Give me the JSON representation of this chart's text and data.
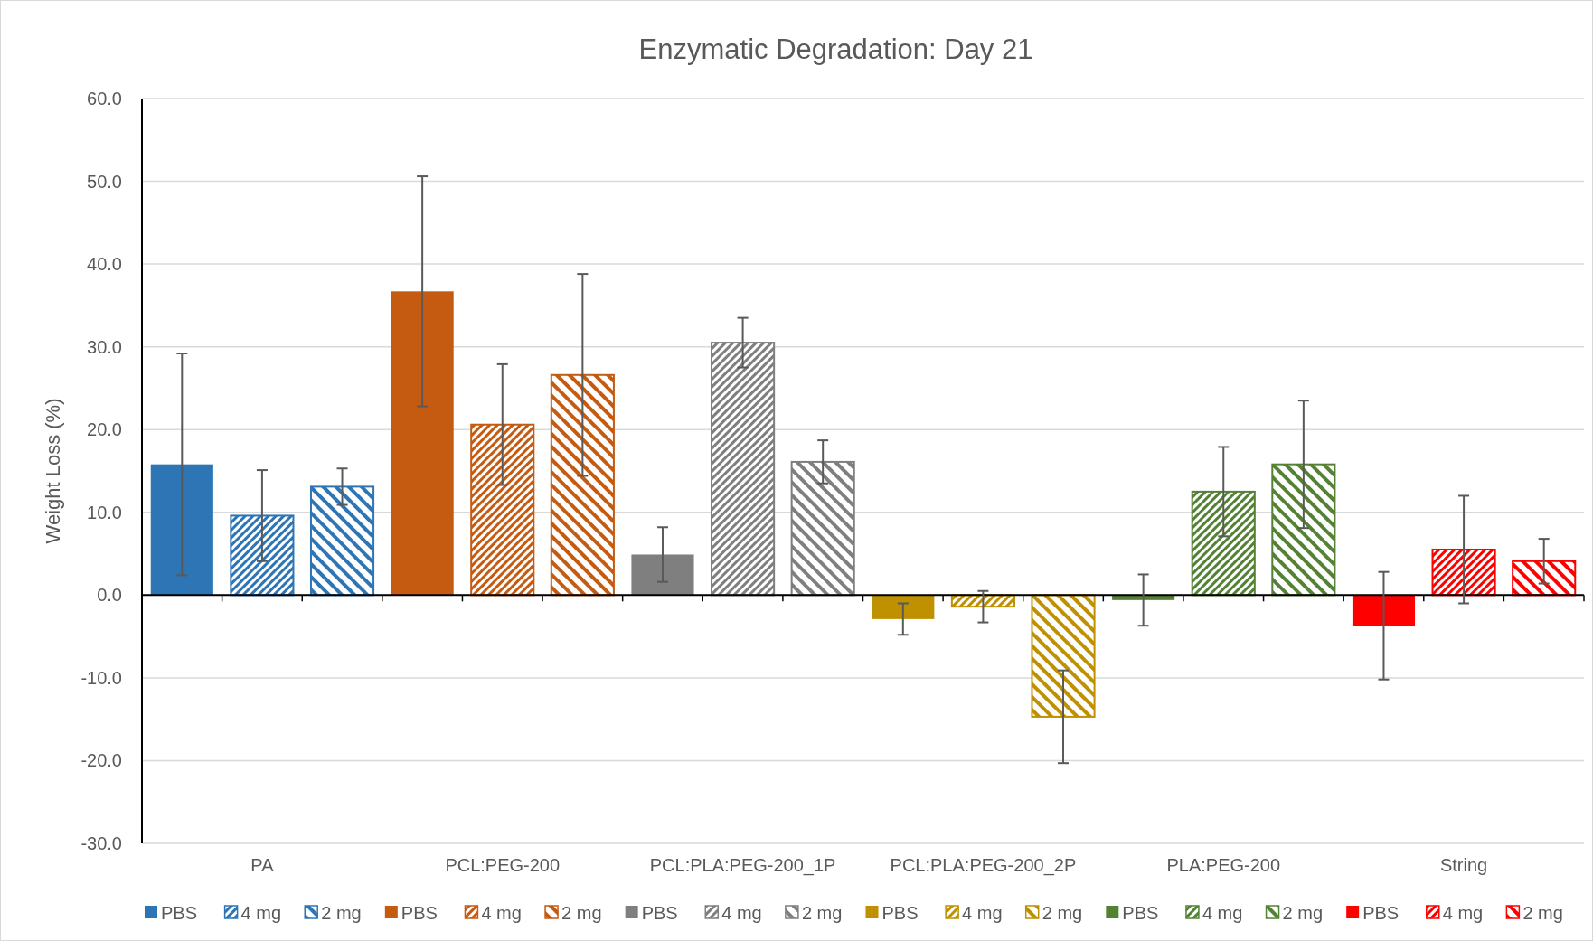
{
  "chart_data": {
    "type": "bar",
    "title": "Enzymatic Degradation: Day 21",
    "ylabel": "Weight Loss (%)",
    "categories": [
      null,
      "PA",
      null,
      null,
      "PCL:PEG-200",
      null,
      null,
      "PCL:PLA:PEG-200_1P",
      null,
      null,
      "PCL:PLA:PEG-200_2P",
      null,
      null,
      "PLA:PEG-200",
      null,
      null,
      "String",
      null
    ],
    "ylim": [
      -30,
      60
    ],
    "yticks": [
      {
        "value": -30,
        "label": "-30.0"
      },
      {
        "value": -20,
        "label": "-20.0"
      },
      {
        "value": -10,
        "label": "-10.0"
      },
      {
        "value": 0,
        "label": "0.0"
      },
      {
        "value": 10,
        "label": "10.0"
      },
      {
        "value": 20,
        "label": "20.0"
      },
      {
        "value": 30,
        "label": "30.0"
      },
      {
        "value": 40,
        "label": "40.0"
      },
      {
        "value": 50,
        "label": "50.0"
      },
      {
        "value": 60,
        "label": "60.0"
      }
    ],
    "grid": "y",
    "legend": "bottom",
    "series": [
      {
        "name": "PBS",
        "color": "#2e75b6",
        "values": [
          15.8,
          null,
          null,
          null,
          null,
          null,
          null,
          null,
          null,
          null,
          null,
          null,
          null,
          null,
          null,
          null,
          null,
          null
        ],
        "errors": [
          13.4,
          null,
          null,
          null,
          null,
          null,
          null,
          null,
          null,
          null,
          null,
          null,
          null,
          null,
          null,
          null,
          null,
          null
        ]
      },
      {
        "name": "4 mg",
        "color": "#2e75b6",
        "values": [
          null,
          9.6,
          null,
          null,
          null,
          null,
          null,
          null,
          null,
          null,
          null,
          null,
          null,
          null,
          null,
          null,
          null,
          null
        ],
        "errors": [
          null,
          5.5,
          null,
          null,
          null,
          null,
          null,
          null,
          null,
          null,
          null,
          null,
          null,
          null,
          null,
          null,
          null,
          null
        ]
      },
      {
        "name": "2 mg",
        "color": "#2e75b6",
        "values": [
          null,
          null,
          13.1,
          null,
          null,
          null,
          null,
          null,
          null,
          null,
          null,
          null,
          null,
          null,
          null,
          null,
          null,
          null
        ],
        "errors": [
          null,
          null,
          2.2,
          null,
          null,
          null,
          null,
          null,
          null,
          null,
          null,
          null,
          null,
          null,
          null,
          null,
          null,
          null
        ]
      },
      {
        "name": "PBS",
        "color": "#c55a11",
        "values": [
          null,
          null,
          null,
          36.7,
          null,
          null,
          null,
          null,
          null,
          null,
          null,
          null,
          null,
          null,
          null,
          null,
          null,
          null
        ],
        "errors": [
          null,
          null,
          null,
          13.9,
          null,
          null,
          null,
          null,
          null,
          null,
          null,
          null,
          null,
          null,
          null,
          null,
          null,
          null
        ]
      },
      {
        "name": "4 mg",
        "color": "#c55a11",
        "values": [
          null,
          null,
          null,
          null,
          20.6,
          null,
          null,
          null,
          null,
          null,
          null,
          null,
          null,
          null,
          null,
          null,
          null,
          null
        ],
        "errors": [
          null,
          null,
          null,
          null,
          7.3,
          null,
          null,
          null,
          null,
          null,
          null,
          null,
          null,
          null,
          null,
          null,
          null,
          null
        ]
      },
      {
        "name": "2 mg",
        "color": "#c55a11",
        "values": [
          null,
          null,
          null,
          null,
          null,
          26.6,
          null,
          null,
          null,
          null,
          null,
          null,
          null,
          null,
          null,
          null,
          null,
          null
        ],
        "errors": [
          null,
          null,
          null,
          null,
          null,
          12.2,
          null,
          null,
          null,
          null,
          null,
          null,
          null,
          null,
          null,
          null,
          null,
          null
        ]
      },
      {
        "name": "PBS",
        "color": "#7f7f7f",
        "values": [
          null,
          null,
          null,
          null,
          null,
          null,
          4.9,
          null,
          null,
          null,
          null,
          null,
          null,
          null,
          null,
          null,
          null,
          null
        ],
        "errors": [
          null,
          null,
          null,
          null,
          null,
          null,
          3.3,
          null,
          null,
          null,
          null,
          null,
          null,
          null,
          null,
          null,
          null,
          null
        ]
      },
      {
        "name": "4 mg",
        "color": "#7f7f7f",
        "values": [
          null,
          null,
          null,
          null,
          null,
          null,
          null,
          30.5,
          null,
          null,
          null,
          null,
          null,
          null,
          null,
          null,
          null,
          null
        ],
        "errors": [
          null,
          null,
          null,
          null,
          null,
          null,
          null,
          3.0,
          null,
          null,
          null,
          null,
          null,
          null,
          null,
          null,
          null,
          null
        ]
      },
      {
        "name": "2 mg",
        "color": "#7f7f7f",
        "values": [
          null,
          null,
          null,
          null,
          null,
          null,
          null,
          null,
          16.1,
          null,
          null,
          null,
          null,
          null,
          null,
          null,
          null,
          null
        ],
        "errors": [
          null,
          null,
          null,
          null,
          null,
          null,
          null,
          null,
          2.6,
          null,
          null,
          null,
          null,
          null,
          null,
          null,
          null,
          null
        ]
      },
      {
        "name": "PBS",
        "color": "#bf9000",
        "values": [
          null,
          null,
          null,
          null,
          null,
          null,
          null,
          null,
          null,
          -2.9,
          null,
          null,
          null,
          null,
          null,
          null,
          null,
          null
        ],
        "errors": [
          null,
          null,
          null,
          null,
          null,
          null,
          null,
          null,
          null,
          1.9,
          null,
          null,
          null,
          null,
          null,
          null,
          null,
          null
        ]
      },
      {
        "name": "4 mg",
        "color": "#bf9000",
        "values": [
          null,
          null,
          null,
          null,
          null,
          null,
          null,
          null,
          null,
          null,
          -1.4,
          null,
          null,
          null,
          null,
          null,
          null,
          null
        ],
        "errors": [
          null,
          null,
          null,
          null,
          null,
          null,
          null,
          null,
          null,
          null,
          1.9,
          null,
          null,
          null,
          null,
          null,
          null,
          null
        ]
      },
      {
        "name": "2 mg",
        "color": "#bf9000",
        "values": [
          null,
          null,
          null,
          null,
          null,
          null,
          null,
          null,
          null,
          null,
          null,
          -14.7,
          null,
          null,
          null,
          null,
          null,
          null
        ],
        "errors": [
          null,
          null,
          null,
          null,
          null,
          null,
          null,
          null,
          null,
          null,
          null,
          5.6,
          null,
          null,
          null,
          null,
          null,
          null
        ]
      },
      {
        "name": "PBS",
        "color": "#548235",
        "values": [
          null,
          null,
          null,
          null,
          null,
          null,
          null,
          null,
          null,
          null,
          null,
          null,
          -0.6,
          null,
          null,
          null,
          null,
          null
        ],
        "errors": [
          null,
          null,
          null,
          null,
          null,
          null,
          null,
          null,
          null,
          null,
          null,
          null,
          3.1,
          null,
          null,
          null,
          null,
          null
        ]
      },
      {
        "name": "4 mg",
        "color": "#548235",
        "values": [
          null,
          null,
          null,
          null,
          null,
          null,
          null,
          null,
          null,
          null,
          null,
          null,
          null,
          12.5,
          null,
          null,
          null,
          null
        ],
        "errors": [
          null,
          null,
          null,
          null,
          null,
          null,
          null,
          null,
          null,
          null,
          null,
          null,
          null,
          5.4,
          null,
          null,
          null,
          null
        ]
      },
      {
        "name": "2 mg",
        "color": "#548235",
        "values": [
          null,
          null,
          null,
          null,
          null,
          null,
          null,
          null,
          null,
          null,
          null,
          null,
          null,
          null,
          15.8,
          null,
          null,
          null
        ],
        "errors": [
          null,
          null,
          null,
          null,
          null,
          null,
          null,
          null,
          null,
          null,
          null,
          null,
          null,
          null,
          7.7,
          null,
          null,
          null
        ]
      },
      {
        "name": "PBS",
        "color": "#ff0000",
        "values": [
          null,
          null,
          null,
          null,
          null,
          null,
          null,
          null,
          null,
          null,
          null,
          null,
          null,
          null,
          null,
          -3.7,
          null,
          null
        ],
        "errors": [
          null,
          null,
          null,
          null,
          null,
          null,
          null,
          null,
          null,
          null,
          null,
          null,
          null,
          null,
          null,
          6.5,
          null,
          null
        ]
      },
      {
        "name": "4 mg",
        "color": "#ff0000",
        "values": [
          null,
          null,
          null,
          null,
          null,
          null,
          null,
          null,
          null,
          null,
          null,
          null,
          null,
          null,
          null,
          null,
          5.5,
          null
        ],
        "errors": [
          null,
          null,
          null,
          null,
          null,
          null,
          null,
          null,
          null,
          null,
          null,
          null,
          null,
          null,
          null,
          null,
          6.5,
          null
        ]
      },
      {
        "name": "2 mg",
        "color": "#ff0000",
        "values": [
          null,
          null,
          null,
          null,
          null,
          null,
          null,
          null,
          null,
          null,
          null,
          null,
          null,
          null,
          null,
          null,
          null,
          4.1
        ],
        "errors": [
          null,
          null,
          null,
          null,
          null,
          null,
          null,
          null,
          null,
          null,
          null,
          null,
          null,
          null,
          null,
          null,
          null,
          2.7
        ]
      }
    ]
  }
}
